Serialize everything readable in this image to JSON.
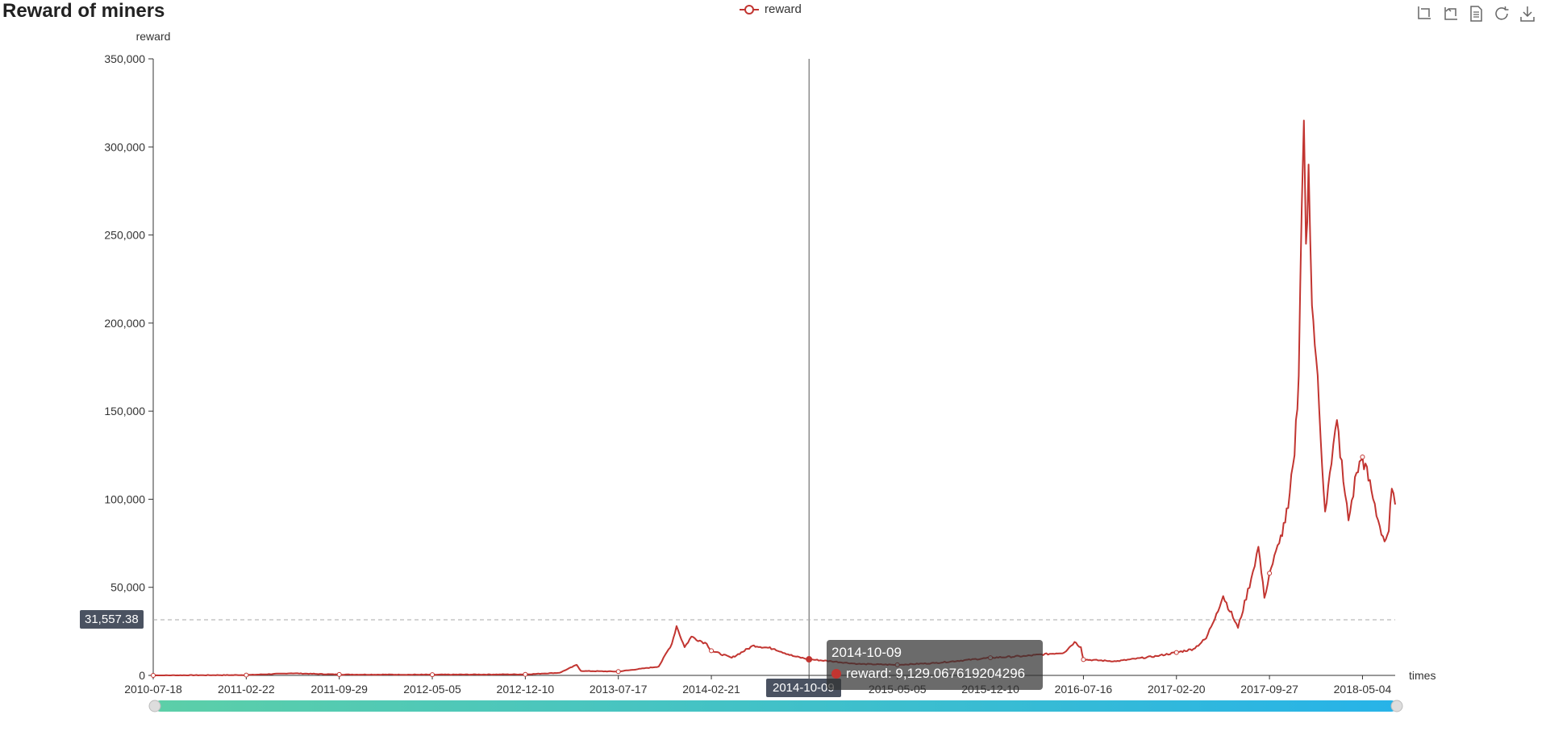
{
  "title": "Reward of miners",
  "legend": {
    "label": "reward",
    "color": "#c23531"
  },
  "toolbox": [
    "zoom-icon",
    "zoom-reset-icon",
    "data-view-icon",
    "restore-icon",
    "save-image-icon"
  ],
  "tooltip": {
    "date": "2014-10-09",
    "text": "reward: 9,129.067619204296"
  },
  "pointer": {
    "y_value": "31,557.38",
    "x_value": "2014-10-09"
  },
  "chart_data": {
    "type": "line",
    "title": "Reward of miners",
    "xlabel": "times",
    "ylabel": "reward",
    "ylim": [
      0,
      350000
    ],
    "y_ticks": [
      0,
      50000,
      100000,
      150000,
      200000,
      250000,
      300000,
      350000
    ],
    "y_tick_labels": [
      "0",
      "50,000",
      "100,000",
      "150,000",
      "200,000",
      "250,000",
      "300,000",
      "350,000"
    ],
    "x_tick_labels": [
      "2010-07-18",
      "2011-02-22",
      "2011-09-29",
      "2012-05-05",
      "2012-12-10",
      "2013-07-17",
      "2014-02-21",
      "2014-10-09",
      "2015-05-05",
      "2015-12-10",
      "2016-07-16",
      "2017-02-20",
      "2017-09-27",
      "2018-05-04"
    ],
    "xlim": [
      "2010-07-18",
      "2018-07-20"
    ],
    "series": [
      {
        "name": "reward",
        "color": "#c23531",
        "points": [
          [
            "2010-07-18",
            0
          ],
          [
            "2011-02-22",
            200
          ],
          [
            "2011-06-08",
            1200
          ],
          [
            "2011-09-29",
            500
          ],
          [
            "2012-05-05",
            400
          ],
          [
            "2012-12-10",
            600
          ],
          [
            "2013-03-01",
            1500
          ],
          [
            "2013-04-10",
            6000
          ],
          [
            "2013-04-20",
            2500
          ],
          [
            "2013-07-17",
            2200
          ],
          [
            "2013-10-20",
            5000
          ],
          [
            "2013-11-20",
            18000
          ],
          [
            "2013-12-01",
            28000
          ],
          [
            "2013-12-20",
            16000
          ],
          [
            "2014-01-05",
            22000
          ],
          [
            "2014-02-10",
            18000
          ],
          [
            "2014-02-21",
            14000
          ],
          [
            "2014-04-10",
            10000
          ],
          [
            "2014-06-01",
            17000
          ],
          [
            "2014-07-20",
            15000
          ],
          [
            "2014-09-01",
            11000
          ],
          [
            "2014-10-09",
            9129
          ],
          [
            "2014-12-01",
            8000
          ],
          [
            "2015-02-01",
            6500
          ],
          [
            "2015-05-05",
            6000
          ],
          [
            "2015-08-01",
            7000
          ],
          [
            "2015-12-10",
            10000
          ],
          [
            "2016-03-01",
            11000
          ],
          [
            "2016-06-01",
            13000
          ],
          [
            "2016-06-25",
            19000
          ],
          [
            "2016-07-10",
            16000
          ],
          [
            "2016-07-16",
            9000
          ],
          [
            "2016-10-01",
            8000
          ],
          [
            "2017-01-05",
            11000
          ],
          [
            "2017-02-20",
            13000
          ],
          [
            "2017-04-01",
            15000
          ],
          [
            "2017-05-01",
            21000
          ],
          [
            "2017-05-25",
            35000
          ],
          [
            "2017-06-10",
            45000
          ],
          [
            "2017-07-15",
            27000
          ],
          [
            "2017-08-15",
            55000
          ],
          [
            "2017-09-01",
            73000
          ],
          [
            "2017-09-15",
            44000
          ],
          [
            "2017-09-27",
            58000
          ],
          [
            "2017-10-20",
            75000
          ],
          [
            "2017-11-10",
            95000
          ],
          [
            "2017-11-25",
            125000
          ],
          [
            "2017-12-05",
            170000
          ],
          [
            "2017-12-12",
            265000
          ],
          [
            "2017-12-17",
            315000
          ],
          [
            "2017-12-22",
            245000
          ],
          [
            "2017-12-28",
            290000
          ],
          [
            "2018-01-05",
            210000
          ],
          [
            "2018-01-15",
            180000
          ],
          [
            "2018-02-05",
            93000
          ],
          [
            "2018-02-20",
            120000
          ],
          [
            "2018-03-05",
            145000
          ],
          [
            "2018-03-20",
            110000
          ],
          [
            "2018-04-01",
            88000
          ],
          [
            "2018-04-20",
            115000
          ],
          [
            "2018-05-04",
            124000
          ],
          [
            "2018-05-25",
            105000
          ],
          [
            "2018-06-10",
            88000
          ],
          [
            "2018-06-25",
            76000
          ],
          [
            "2018-07-05",
            82000
          ],
          [
            "2018-07-12",
            106000
          ],
          [
            "2018-07-20",
            97000
          ]
        ]
      }
    ]
  }
}
